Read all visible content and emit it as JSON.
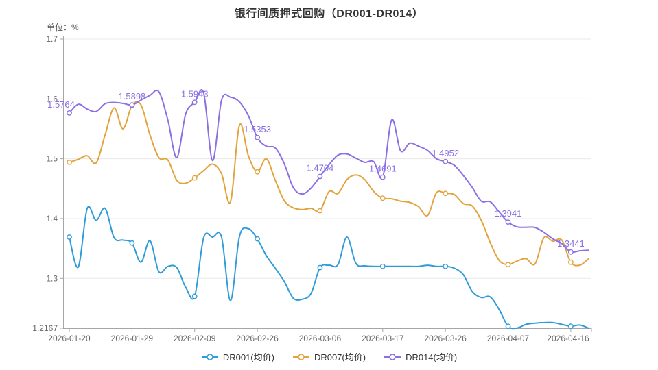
{
  "title": "银行间质押式回购（DR001-DR014）",
  "unit_label": "单位：%",
  "colors": {
    "dr001": "#2F9CD9",
    "dr007": "#E2A33C",
    "dr014": "#8B6FE3",
    "grid": "#E8E8E8",
    "axis": "#A6A6A6",
    "axis_label": "#666666",
    "annotation": "#8B6FE3",
    "title_color": "#333333"
  },
  "chart_data": {
    "type": "line",
    "smooth": true,
    "x_tick_labels": [
      "2026-01-20",
      "2026-01-29",
      "2026-02-09",
      "2026-02-26",
      "2026-03-06",
      "2026-03-17",
      "2026-03-26",
      "2026-04-07",
      "2026-04-16"
    ],
    "x_tick_indices": [
      0,
      7,
      14,
      21,
      28,
      35,
      42,
      49,
      56
    ],
    "point_count": 59,
    "y_ticks": [
      "1.7",
      "1.6",
      "1.5",
      "1.4",
      "1.3",
      "1.2167"
    ],
    "y_tick_values": [
      1.7,
      1.6,
      1.5,
      1.4,
      1.3,
      1.2167
    ],
    "y_min": 1.2167,
    "y_max": 1.7,
    "legend_position": "bottom",
    "grid": true,
    "series": [
      {
        "name": "DR001(均价)",
        "color_key": "dr001",
        "values": [
          1.369,
          1.319,
          1.417,
          1.397,
          1.417,
          1.368,
          1.364,
          1.359,
          1.327,
          1.363,
          1.311,
          1.32,
          1.318,
          1.285,
          1.27,
          1.368,
          1.369,
          1.369,
          1.263,
          1.37,
          1.383,
          1.366,
          1.338,
          1.317,
          1.295,
          1.267,
          1.265,
          1.275,
          1.318,
          1.322,
          1.323,
          1.369,
          1.325,
          1.321,
          1.32,
          1.32,
          1.32,
          1.32,
          1.32,
          1.32,
          1.322,
          1.32,
          1.32,
          1.317,
          1.306,
          1.278,
          1.268,
          1.269,
          1.248,
          1.22,
          1.217,
          1.223,
          1.225,
          1.226,
          1.226,
          1.223,
          1.22,
          1.222,
          1.2167
        ]
      },
      {
        "name": "DR007(均价)",
        "color_key": "dr007",
        "values": [
          1.494,
          1.499,
          1.505,
          1.493,
          1.54,
          1.585,
          1.55,
          1.589,
          1.59,
          1.54,
          1.502,
          1.498,
          1.464,
          1.459,
          1.468,
          1.48,
          1.491,
          1.475,
          1.428,
          1.556,
          1.505,
          1.478,
          1.5,
          1.464,
          1.43,
          1.418,
          1.415,
          1.417,
          1.413,
          1.445,
          1.442,
          1.465,
          1.473,
          1.465,
          1.445,
          1.434,
          1.433,
          1.429,
          1.427,
          1.42,
          1.405,
          1.443,
          1.442,
          1.44,
          1.425,
          1.421,
          1.397,
          1.36,
          1.33,
          1.323,
          1.329,
          1.333,
          1.324,
          1.368,
          1.362,
          1.364,
          1.327,
          1.322,
          1.333
        ]
      },
      {
        "name": "DR014(均价)",
        "color_key": "dr014",
        "values": [
          1.5764,
          1.591,
          1.583,
          1.579,
          1.592,
          1.594,
          1.5925,
          1.5898,
          1.598,
          1.606,
          1.612,
          1.565,
          1.502,
          1.575,
          1.5943,
          1.61,
          1.497,
          1.598,
          1.603,
          1.595,
          1.572,
          1.5353,
          1.521,
          1.518,
          1.492,
          1.452,
          1.441,
          1.451,
          1.4704,
          1.49,
          1.506,
          1.508,
          1.501,
          1.494,
          1.495,
          1.4691,
          1.565,
          1.513,
          1.526,
          1.521,
          1.514,
          1.5,
          1.4952,
          1.489,
          1.472,
          1.452,
          1.429,
          1.428,
          1.411,
          1.3941,
          1.386,
          1.3855,
          1.385,
          1.377,
          1.366,
          1.358,
          1.3441,
          1.346,
          1.347
        ],
        "annotations": [
          {
            "index": 0,
            "text": "1.5764"
          },
          {
            "index": 7,
            "text": "1.5898"
          },
          {
            "index": 14,
            "text": "1.5943"
          },
          {
            "index": 21,
            "text": "1.5353"
          },
          {
            "index": 28,
            "text": "1.4704"
          },
          {
            "index": 35,
            "text": "1.4691"
          },
          {
            "index": 42,
            "text": "1.4952"
          },
          {
            "index": 49,
            "text": "1.3941"
          },
          {
            "index": 56,
            "text": "1.3441"
          }
        ]
      }
    ]
  }
}
